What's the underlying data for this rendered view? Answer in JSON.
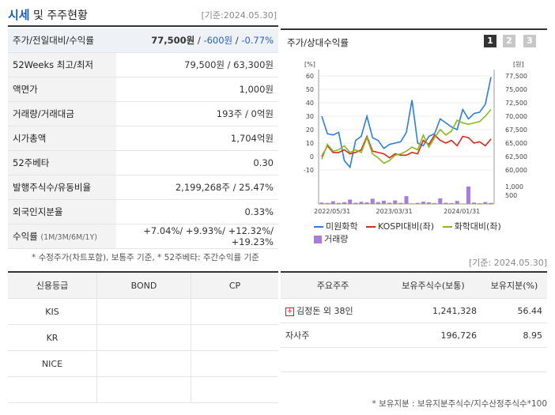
{
  "header": {
    "title_blue": "시세",
    "title_rest": " 및 주주현황",
    "date": "[기준:2024.05.30]"
  },
  "stats": [
    {
      "label": "주가/전일대비/수익률",
      "price": "77,500원",
      "sep1": " / ",
      "change": "-600원",
      "sep2": " / ",
      "rate": "-0.77%"
    },
    {
      "label": "52Weeks 최고/최저",
      "value": "79,500원 / 63,300원"
    },
    {
      "label": "액면가",
      "value": "1,000원"
    },
    {
      "label": "거래량/거래대금",
      "value": "193주 / 0억원"
    },
    {
      "label": "시가총액",
      "value": "1,704억원"
    },
    {
      "label": "52주베타",
      "value": "0.30"
    },
    {
      "label": "발행주식수/유동비율",
      "value": "2,199,268주 / 25.47%"
    },
    {
      "label": "외국인지분율",
      "value": "0.33%"
    },
    {
      "label": "수익률",
      "label_sub": "(1M/3M/6M/1Y)",
      "value": "+7.04%/ +9.93%/ +12.32%/ +19.23%"
    }
  ],
  "note1": "* 수정주가(차트포함), 보통주 기준, * 52주베타: 주간수익률 기준",
  "chart": {
    "title": "주가/상대수익률",
    "pages": [
      "1",
      "2",
      "3"
    ],
    "left_unit": "[%]",
    "right_unit": "[원]",
    "legend": [
      "미원화학",
      "KOSPI대비(좌)",
      "화학대비(좌)",
      "거래량"
    ],
    "colors": {
      "price": "#2a7de1",
      "kospi": "#d62a1f",
      "chem": "#8ab820",
      "volume": "#a77ddc"
    }
  },
  "chart_data": {
    "type": "line",
    "left_ticks": [
      "60",
      "50",
      "40",
      "30",
      "20",
      "10",
      "0",
      "-10"
    ],
    "right_ticks": [
      "77,500",
      "75,000",
      "72,500",
      "70,000",
      "67,500",
      "65,000",
      "62,500",
      "60,000"
    ],
    "vol_ticks": [
      "1,000",
      "500"
    ],
    "x_ticks": [
      "2022/05/31",
      "2023/03/31",
      "2024/01/31"
    ],
    "ylim": [
      -10,
      60
    ],
    "series": [
      {
        "name": "미원화학",
        "values": [
          30,
          17,
          16,
          18,
          -3,
          -8,
          12,
          15,
          30,
          14,
          12,
          6,
          9,
          10,
          11,
          18,
          42,
          10,
          8,
          15,
          17,
          28,
          25,
          22,
          20,
          35,
          28,
          32,
          33,
          39,
          59
        ]
      },
      {
        "name": "KOSPI대비(좌)",
        "values": [
          0,
          8,
          3,
          3,
          5,
          2,
          3,
          5,
          15,
          4,
          3,
          2,
          -1,
          2,
          1,
          1,
          3,
          2,
          12,
          9,
          16,
          12,
          10,
          12,
          8,
          15,
          14,
          10,
          11,
          8,
          13
        ]
      },
      {
        "name": "화학대비(좌)",
        "values": [
          -2,
          9,
          4,
          5,
          8,
          3,
          5,
          3,
          14,
          2,
          -1,
          -5,
          -3,
          1,
          2,
          4,
          7,
          5,
          16,
          7,
          14,
          20,
          16,
          19,
          27,
          25,
          24,
          25,
          26,
          30,
          35
        ]
      },
      {
        "name": "거래량",
        "values": [
          80,
          60,
          150,
          60,
          100,
          250,
          70,
          120,
          90,
          300,
          110,
          180,
          70,
          200,
          60,
          450,
          30,
          60,
          130,
          90,
          50,
          320,
          70,
          50,
          170,
          20,
          1000,
          80,
          40,
          110,
          60
        ]
      }
    ],
    "vol_ylim": [
      0,
      1000
    ]
  },
  "date2": "[기준: 2024.05.30]",
  "credit": {
    "headers": [
      "신용등급",
      "BOND",
      "CP"
    ],
    "rows": [
      [
        "KIS",
        "",
        ""
      ],
      [
        "KR",
        "",
        ""
      ],
      [
        "NICE",
        "",
        ""
      ],
      [
        "",
        "",
        ""
      ]
    ]
  },
  "holders": {
    "headers": [
      "주요주주",
      "보유주식수(보통)",
      "보유지분(%)"
    ],
    "rows": [
      {
        "name": "김정돈 외 38인",
        "shares": "1,241,328",
        "pct": "56.44"
      },
      {
        "name": "자사주",
        "shares": "196,726",
        "pct": "8.95"
      },
      {
        "name": "",
        "shares": "",
        "pct": ""
      }
    ]
  },
  "note2": "* 보유지분 : 보유지분주식수/지수산정주식수*100"
}
